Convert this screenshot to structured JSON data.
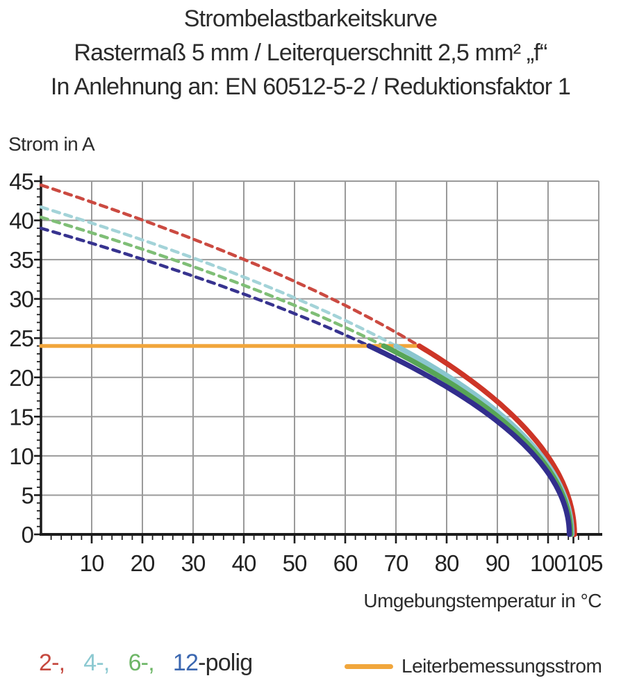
{
  "title": {
    "line1": "Strombelastbarkeitskurve",
    "line2": "Rastermaß 5 mm / Leiterquerschnitt 2,5 mm² „f“",
    "line3": "In Anlehnung an: EN 60512-5-2 / Reduktionsfaktor 1"
  },
  "legend": {
    "pole_items": [
      {
        "label": "2-,",
        "color": "#c5483e"
      },
      {
        "label": "4-,",
        "color": "#8cc9d1"
      },
      {
        "label": "6-,",
        "color": "#6db666"
      },
      {
        "label": "12",
        "color": "#3b67b0"
      }
    ],
    "pole_suffix": "-polig",
    "rated_label": "Leiterbemessungsstrom",
    "rated_color": "#f1a63c"
  },
  "chart_data": {
    "type": "line",
    "title_lines": [
      "Strombelastbarkeitskurve",
      "Rastermaß 5 mm / Leiterquerschnitt 2,5 mm² „f“",
      "In Anlehnung an: EN 60512-5-2 / Reduktionsfaktor 1"
    ],
    "xlabel": "Umgebungstemperatur in °C",
    "ylabel": "Strom in A",
    "xlim": [
      0,
      110
    ],
    "ylim": [
      0,
      45
    ],
    "grid": true,
    "x_gridlines": [
      10,
      20,
      30,
      40,
      50,
      60,
      70,
      80,
      90,
      100
    ],
    "y_gridlines": [
      5,
      10,
      15,
      20,
      25,
      30,
      35,
      40
    ],
    "x_major_ticks": [
      10,
      20,
      30,
      40,
      50,
      60,
      70,
      80,
      90,
      100,
      105
    ],
    "y_major_ticks": [
      0,
      5,
      10,
      15,
      20,
      25,
      30,
      35,
      40,
      45
    ],
    "x_minor_step": 2,
    "y_minor_step": 1,
    "rated_current": {
      "value": 24,
      "color": "#f1a63c",
      "label": "Leiterbemessungsstrom"
    },
    "curve_model": "I(T) = i0 * sqrt(1 - T / t_end); dashed above rated current (24 A), solid below; knee_temp is where curve crosses 24 A",
    "sample_x": [
      0,
      10,
      20,
      30,
      40,
      50,
      60,
      70,
      80,
      90,
      100
    ],
    "series": [
      {
        "name": "2-polig",
        "poles": 2,
        "color": "#cd3527",
        "dash_color": "#cb4a41",
        "i0": 44.5,
        "t_end": 105.2,
        "knee_temp": 74.6,
        "values_at_x": [
          44.5,
          42.3,
          40.0,
          37.6,
          35.0,
          32.3,
          29.2,
          25.8,
          21.9,
          17.0,
          9.9
        ]
      },
      {
        "name": "4-polig",
        "poles": 4,
        "color": "#8ac6cf",
        "dash_color": "#a3d3d8",
        "i0": 41.7,
        "t_end": 104.7,
        "knee_temp": 70.0,
        "values_at_x": [
          41.7,
          39.7,
          37.5,
          35.2,
          32.8,
          30.1,
          27.2,
          24.0,
          20.3,
          15.6,
          8.8
        ]
      },
      {
        "name": "6-polig",
        "poles": 6,
        "color": "#57a557",
        "dash_color": "#7fbe76",
        "i0": 40.4,
        "t_end": 104.5,
        "knee_temp": 67.6,
        "values_at_x": [
          40.4,
          38.4,
          36.3,
          34.1,
          31.7,
          29.2,
          26.4,
          23.2,
          19.6,
          15.1,
          8.4
        ]
      },
      {
        "name": "12-polig",
        "poles": 12,
        "color": "#322e8d",
        "dash_color": "#37338f",
        "i0": 39.0,
        "t_end": 104.2,
        "knee_temp": 64.7,
        "values_at_x": [
          39.0,
          37.1,
          35.1,
          32.9,
          30.6,
          28.1,
          25.4,
          22.3,
          18.8,
          14.4,
          7.8
        ]
      }
    ],
    "colors": {
      "grid": "#9a9a9a",
      "axis": "#1c1c1c",
      "tick_label": "#222222"
    }
  }
}
